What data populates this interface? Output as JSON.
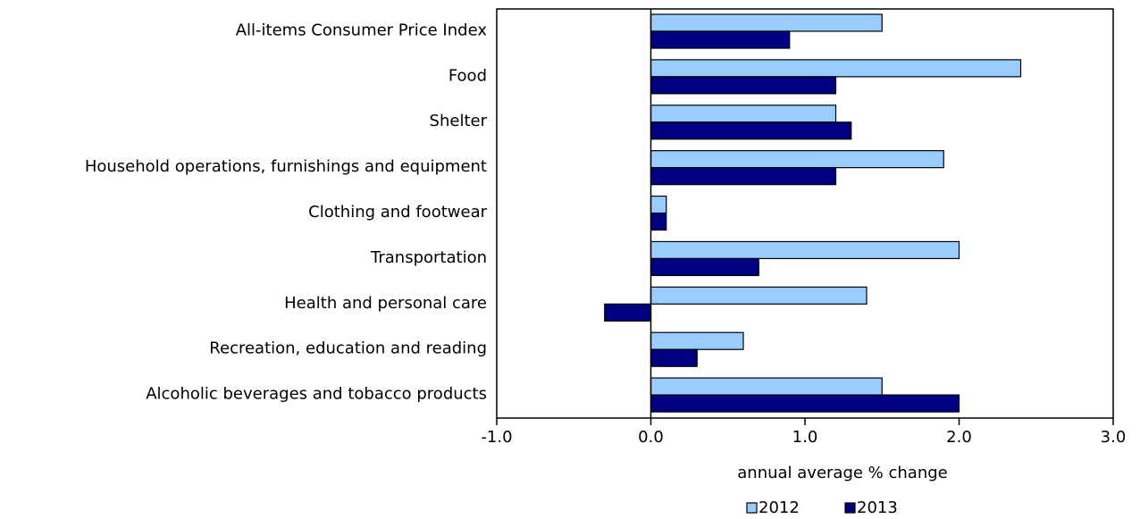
{
  "chart_data": {
    "type": "hbar",
    "categories": [
      "All-items Consumer Price Index",
      "Food",
      "Shelter",
      "Household operations, furnishings and equipment",
      "Clothing and footwear",
      "Transportation",
      "Health and personal care",
      "Recreation, education and reading",
      "Alcoholic beverages and tobacco products"
    ],
    "series": [
      {
        "name": "2012",
        "color": "#99ccff",
        "values": [
          1.5,
          2.4,
          1.2,
          1.9,
          0.1,
          2.0,
          1.4,
          0.6,
          1.5
        ]
      },
      {
        "name": "2013",
        "color": "#000080",
        "values": [
          0.9,
          1.2,
          1.3,
          1.2,
          0.1,
          0.7,
          -0.3,
          0.3,
          2.0
        ]
      }
    ],
    "xlabel": "annual average % change",
    "xlim": [
      -1,
      3
    ],
    "xticks": [
      {
        "value": -1,
        "label": "-1.0"
      },
      {
        "value": 0,
        "label": "0.0"
      },
      {
        "value": 1,
        "label": "1.0"
      },
      {
        "value": 2,
        "label": "2.0"
      },
      {
        "value": 3,
        "label": "3.0"
      }
    ]
  }
}
